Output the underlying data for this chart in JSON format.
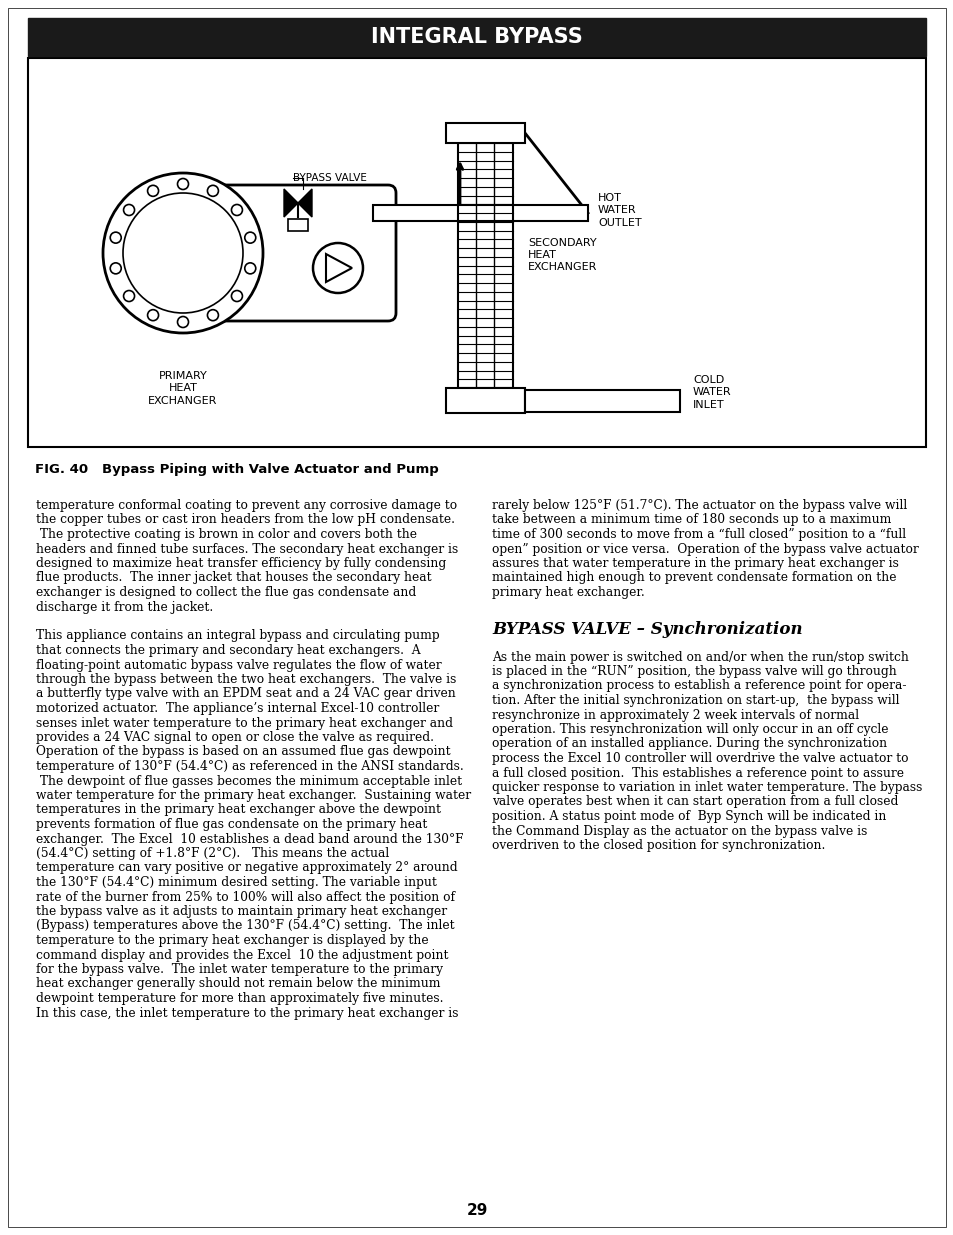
{
  "title": "INTEGRAL BYPASS",
  "title_bg": "#1a1a1a",
  "title_color": "#ffffff",
  "fig_caption": "FIG. 40   Bypass Piping with Valve Actuator and Pump",
  "section_heading": "BYPASS VALVE – Synchronization",
  "page_number": "29",
  "left_column_text": [
    "temperature conformal coating to prevent any corrosive damage to",
    "the copper tubes or cast iron headers from the low pH condensate.",
    " The protective coating is brown in color and covers both the",
    "headers and finned tube surfaces. The secondary heat exchanger is",
    "designed to maximize heat transfer efficiency by fully condensing",
    "flue products.  The inner jacket that houses the secondary heat",
    "exchanger is designed to collect the flue gas condensate and",
    "discharge it from the jacket.",
    "",
    "This appliance contains an integral bypass and circulating pump",
    "that connects the primary and secondary heat exchangers.  A",
    "floating-point automatic bypass valve regulates the flow of water",
    "through the bypass between the two heat exchangers.  The valve is",
    "a butterfly type valve with an EPDM seat and a 24 VAC gear driven",
    "motorized actuator.  The appliance’s internal Excel-10 controller",
    "senses inlet water temperature to the primary heat exchanger and",
    "provides a 24 VAC signal to open or close the valve as required.",
    "Operation of the bypass is based on an assumed flue gas dewpoint",
    "temperature of 130°F (54.4°C) as referenced in the ANSI standards.",
    " The dewpoint of flue gasses becomes the minimum acceptable inlet",
    "water temperature for the primary heat exchanger.  Sustaining water",
    "temperatures in the primary heat exchanger above the dewpoint",
    "prevents formation of flue gas condensate on the primary heat",
    "exchanger.  The Excel  10 establishes a dead band around the 130°F",
    "(54.4°C) setting of +1.8°F (2°C).   This means the actual",
    "temperature can vary positive or negative approximately 2° around",
    "the 130°F (54.4°C) minimum desired setting. The variable input",
    "rate of the burner from 25% to 100% will also affect the position of",
    "the bypass valve as it adjusts to maintain primary heat exchanger",
    "(Bypass) temperatures above the 130°F (54.4°C) setting.  The inlet",
    "temperature to the primary heat exchanger is displayed by the",
    "command display and provides the Excel  10 the adjustment point",
    "for the bypass valve.  The inlet water temperature to the primary",
    "heat exchanger generally should not remain below the minimum",
    "dewpoint temperature for more than approximately five minutes.",
    "In this case, the inlet temperature to the primary heat exchanger is"
  ],
  "right_column_text_1": [
    "rarely below 125°F (51.7°C). The actuator on the bypass valve will",
    "take between a minimum time of 180 seconds up to a maximum",
    "time of 300 seconds to move from a “full closed” position to a “full",
    "open” position or vice versa.  Operation of the bypass valve actuator",
    "assures that water temperature in the primary heat exchanger is",
    "maintained high enough to prevent condensate formation on the",
    "primary heat exchanger."
  ],
  "right_column_text_2": [
    "As the main power is switched on and/or when the run/stop switch",
    "is placed in the “RUN” position, the bypass valve will go through",
    "a synchronization process to establish a reference point for opera-",
    "tion. After the initial synchronization on start-up,  the bypass will",
    "resynchronize in approximately 2 week intervals of normal",
    "operation. This resynchronization will only occur in an off cycle",
    "operation of an installed appliance. During the synchronization",
    "process the Excel 10 controller will overdrive the valve actuator to",
    "a full closed position.  This establishes a reference point to assure",
    "quicker response to variation in inlet water temperature. The bypass",
    "valve operates best when it can start operation from a full closed",
    "position. A status point mode of  Byp Synch will be indicated in",
    "the Command Display as the actuator on the bypass valve is",
    "overdriven to the closed position for synchronization."
  ],
  "background_color": "#ffffff",
  "text_color": "#000000",
  "body_fontsize": 8.8,
  "caption_fontsize": 9.5,
  "heading_fontsize": 12
}
